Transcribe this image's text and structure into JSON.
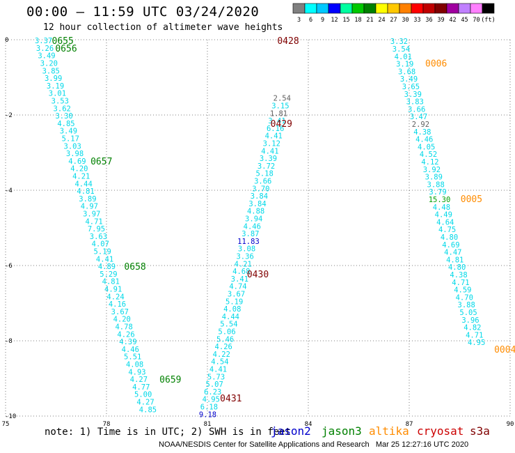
{
  "header": {
    "title": "00:00 – 11:59 UTC 03/24/2020",
    "subtitle": "12 hour collection of altimeter wave heights"
  },
  "colorbar": {
    "colors": [
      "#808080",
      "#00ffff",
      "#00c8ff",
      "#0000ff",
      "#00ffa0",
      "#00c800",
      "#008000",
      "#ffff00",
      "#ffc800",
      "#ff8000",
      "#ff0000",
      "#c00000",
      "#800000",
      "#a000a0",
      "#c080ff",
      "#ff80ff",
      "#000000"
    ],
    "labels": [
      "3",
      "6",
      "9",
      "12",
      "15",
      "18",
      "21",
      "24",
      "27",
      "30",
      "33",
      "36",
      "39",
      "42",
      "45",
      "70",
      "(ft)"
    ]
  },
  "note": "note: 1) Time is in UTC; 2) SWH is in feet",
  "legend": [
    {
      "label": "jason2",
      "color": "#0000cc"
    },
    {
      "label": "jason3",
      "color": "#008000"
    },
    {
      "label": "altika",
      "color": "#ff8c00"
    },
    {
      "label": "cryosat",
      "color": "#cc0000"
    },
    {
      "label": "s3a",
      "color": "#800000"
    }
  ],
  "footer": "NOAA/NESDIS Center for Satellite Applications and Research   Mar 25 12:27:16 UTC 2020",
  "chart_data": {
    "type": "scatter",
    "xlim": [
      75,
      90
    ],
    "ylim": [
      -10,
      0
    ],
    "xticks": [
      "75",
      "78",
      "81",
      "84",
      "87",
      "90"
    ],
    "yticks": [
      "0",
      "-2",
      "-4",
      "-6",
      "-8",
      "-10"
    ],
    "grid": true,
    "tracks": [
      {
        "color": "#00d8e8",
        "points": [
          {
            "x": 76.13,
            "y": -0.02,
            "v": "3.37"
          },
          {
            "x": 76.17,
            "y": -0.22,
            "v": "3.26"
          },
          {
            "x": 76.22,
            "y": -0.42,
            "v": "3.49"
          },
          {
            "x": 76.29,
            "y": -0.62,
            "v": "3.20"
          },
          {
            "x": 76.35,
            "y": -0.82,
            "v": "3.85"
          },
          {
            "x": 76.42,
            "y": -1.02,
            "v": "3.99"
          },
          {
            "x": 76.48,
            "y": -1.22,
            "v": "3.19"
          },
          {
            "x": 76.54,
            "y": -1.42,
            "v": "3.01"
          },
          {
            "x": 76.62,
            "y": -1.62,
            "v": "3.53"
          },
          {
            "x": 76.68,
            "y": -1.82,
            "v": "3.62"
          },
          {
            "x": 76.74,
            "y": -2.02,
            "v": "3.30"
          },
          {
            "x": 76.8,
            "y": -2.22,
            "v": "4.85"
          },
          {
            "x": 76.87,
            "y": -2.42,
            "v": "3.49"
          },
          {
            "x": 76.93,
            "y": -2.62,
            "v": "5.17"
          },
          {
            "x": 76.99,
            "y": -2.82,
            "v": "3.03"
          },
          {
            "x": 77.06,
            "y": -3.02,
            "v": "3.98"
          },
          {
            "x": 77.13,
            "y": -3.22,
            "v": "4.69"
          },
          {
            "x": 77.19,
            "y": -3.42,
            "v": "4.20"
          },
          {
            "x": 77.25,
            "y": -3.62,
            "v": "4.21"
          },
          {
            "x": 77.32,
            "y": -3.82,
            "v": "4.44"
          },
          {
            "x": 77.38,
            "y": -4.02,
            "v": "4.81"
          },
          {
            "x": 77.44,
            "y": -4.22,
            "v": "3.89"
          },
          {
            "x": 77.49,
            "y": -4.42,
            "v": "4.97"
          },
          {
            "x": 77.56,
            "y": -4.62,
            "v": "3.97"
          },
          {
            "x": 77.63,
            "y": -4.82,
            "v": "4.71"
          },
          {
            "x": 77.7,
            "y": -5.02,
            "v": "7.95"
          },
          {
            "x": 77.76,
            "y": -5.22,
            "v": "3.63"
          },
          {
            "x": 77.82,
            "y": -5.42,
            "v": "4.07"
          },
          {
            "x": 77.88,
            "y": -5.62,
            "v": "5.19"
          },
          {
            "x": 77.95,
            "y": -5.82,
            "v": "4.41"
          },
          {
            "x": 78.01,
            "y": -6.02,
            "v": "4.89"
          },
          {
            "x": 78.06,
            "y": -6.22,
            "v": "5.29"
          },
          {
            "x": 78.13,
            "y": -6.42,
            "v": "4.81"
          },
          {
            "x": 78.2,
            "y": -6.62,
            "v": "4.91"
          },
          {
            "x": 78.27,
            "y": -6.82,
            "v": "4.24"
          },
          {
            "x": 78.32,
            "y": -7.02,
            "v": "4.16"
          },
          {
            "x": 78.4,
            "y": -7.22,
            "v": "3.67"
          },
          {
            "x": 78.46,
            "y": -7.42,
            "v": "4.20"
          },
          {
            "x": 78.52,
            "y": -7.62,
            "v": "4.78"
          },
          {
            "x": 78.58,
            "y": -7.82,
            "v": "4.26"
          },
          {
            "x": 78.64,
            "y": -8.02,
            "v": "4.39"
          },
          {
            "x": 78.71,
            "y": -8.22,
            "v": "4.46"
          },
          {
            "x": 78.78,
            "y": -8.42,
            "v": "5.51"
          },
          {
            "x": 78.84,
            "y": -8.62,
            "v": "4.08"
          },
          {
            "x": 78.91,
            "y": -8.82,
            "v": "4.93"
          },
          {
            "x": 78.96,
            "y": -9.02,
            "v": "4.27"
          },
          {
            "x": 79.03,
            "y": -9.22,
            "v": "4.77"
          },
          {
            "x": 79.09,
            "y": -9.42,
            "v": "5.00"
          },
          {
            "x": 79.16,
            "y": -9.62,
            "v": "4.27"
          },
          {
            "x": 79.23,
            "y": -9.82,
            "v": "4.85"
          }
        ]
      },
      {
        "color": "#00d8e8",
        "points": [
          {
            "x": 81.01,
            "y": -9.95,
            "v": "9.18",
            "c": "#0000cc"
          },
          {
            "x": 81.05,
            "y": -9.75,
            "v": "6.18"
          },
          {
            "x": 81.11,
            "y": -9.55,
            "v": "4.95"
          },
          {
            "x": 81.16,
            "y": -9.35,
            "v": "6.23"
          },
          {
            "x": 81.21,
            "y": -9.15,
            "v": "5.07"
          },
          {
            "x": 81.26,
            "y": -8.95,
            "v": "5.73"
          },
          {
            "x": 81.32,
            "y": -8.75,
            "v": "4.41"
          },
          {
            "x": 81.37,
            "y": -8.55,
            "v": "4.54"
          },
          {
            "x": 81.42,
            "y": -8.35,
            "v": "4.22"
          },
          {
            "x": 81.48,
            "y": -8.15,
            "v": "4.26"
          },
          {
            "x": 81.53,
            "y": -7.95,
            "v": "5.46"
          },
          {
            "x": 81.58,
            "y": -7.75,
            "v": "5.06"
          },
          {
            "x": 81.64,
            "y": -7.55,
            "v": "5.54"
          },
          {
            "x": 81.69,
            "y": -7.35,
            "v": "4.44"
          },
          {
            "x": 81.74,
            "y": -7.15,
            "v": "4.08"
          },
          {
            "x": 81.8,
            "y": -6.95,
            "v": "5.19"
          },
          {
            "x": 81.86,
            "y": -6.75,
            "v": "3.67"
          },
          {
            "x": 81.91,
            "y": -6.55,
            "v": "4.74"
          },
          {
            "x": 81.96,
            "y": -6.35,
            "v": "3.41"
          },
          {
            "x": 82.01,
            "y": -6.15,
            "v": "4.68"
          },
          {
            "x": 82.06,
            "y": -5.95,
            "v": "4.21"
          },
          {
            "x": 82.12,
            "y": -5.75,
            "v": "3.36"
          },
          {
            "x": 82.17,
            "y": -5.55,
            "v": "3.08"
          },
          {
            "x": 82.22,
            "y": -5.35,
            "v": "11.83",
            "c": "#0000cc"
          },
          {
            "x": 82.28,
            "y": -5.15,
            "v": "3.87"
          },
          {
            "x": 82.33,
            "y": -4.95,
            "v": "4.46"
          },
          {
            "x": 82.38,
            "y": -4.75,
            "v": "3.94"
          },
          {
            "x": 82.44,
            "y": -4.55,
            "v": "4.88"
          },
          {
            "x": 82.49,
            "y": -4.35,
            "v": "3.84"
          },
          {
            "x": 82.54,
            "y": -4.15,
            "v": "3.84"
          },
          {
            "x": 82.59,
            "y": -3.95,
            "v": "3.70"
          },
          {
            "x": 82.65,
            "y": -3.75,
            "v": "3.66"
          },
          {
            "x": 82.7,
            "y": -3.55,
            "v": "5.18"
          },
          {
            "x": 82.75,
            "y": -3.35,
            "v": "3.72"
          },
          {
            "x": 82.81,
            "y": -3.15,
            "v": "3.39"
          },
          {
            "x": 82.86,
            "y": -2.95,
            "v": "4.41"
          },
          {
            "x": 82.91,
            "y": -2.75,
            "v": "3.12"
          },
          {
            "x": 82.97,
            "y": -2.55,
            "v": "4.41"
          },
          {
            "x": 83.02,
            "y": -2.35,
            "v": "6.16"
          },
          {
            "x": 83.07,
            "y": -2.15,
            "v": "3.41"
          },
          {
            "x": 83.12,
            "y": -1.95,
            "v": "1.81",
            "c": "#606060"
          },
          {
            "x": 83.17,
            "y": -1.75,
            "v": "3.15"
          },
          {
            "x": 83.22,
            "y": -1.55,
            "v": "2.54",
            "c": "#606060"
          }
        ]
      },
      {
        "color": "#00d8e8",
        "points": [
          {
            "x": 86.7,
            "y": -0.04,
            "v": "3.32"
          },
          {
            "x": 86.76,
            "y": -0.24,
            "v": "3.54"
          },
          {
            "x": 86.82,
            "y": -0.44,
            "v": "4.01"
          },
          {
            "x": 86.87,
            "y": -0.64,
            "v": "3.19"
          },
          {
            "x": 86.93,
            "y": -0.84,
            "v": "3.68"
          },
          {
            "x": 86.99,
            "y": -1.04,
            "v": "3.49"
          },
          {
            "x": 87.05,
            "y": -1.24,
            "v": "3.65"
          },
          {
            "x": 87.11,
            "y": -1.44,
            "v": "3.39"
          },
          {
            "x": 87.17,
            "y": -1.64,
            "v": "3.83"
          },
          {
            "x": 87.22,
            "y": -1.84,
            "v": "3.66"
          },
          {
            "x": 87.28,
            "y": -2.04,
            "v": "3.47"
          },
          {
            "x": 87.34,
            "y": -2.24,
            "v": "2.92",
            "c": "#606060"
          },
          {
            "x": 87.39,
            "y": -2.44,
            "v": "4.38"
          },
          {
            "x": 87.45,
            "y": -2.64,
            "v": "4.46"
          },
          {
            "x": 87.51,
            "y": -2.84,
            "v": "4.05"
          },
          {
            "x": 87.57,
            "y": -3.04,
            "v": "4.52"
          },
          {
            "x": 87.62,
            "y": -3.24,
            "v": "4.12"
          },
          {
            "x": 87.67,
            "y": -3.44,
            "v": "3.92"
          },
          {
            "x": 87.73,
            "y": -3.64,
            "v": "3.89"
          },
          {
            "x": 87.79,
            "y": -3.84,
            "v": "3.88"
          },
          {
            "x": 87.85,
            "y": -4.04,
            "v": "3.79"
          },
          {
            "x": 87.9,
            "y": -4.24,
            "v": "15.30",
            "c": "#00a000"
          },
          {
            "x": 87.96,
            "y": -4.44,
            "v": "4.48"
          },
          {
            "x": 88.02,
            "y": -4.64,
            "v": "4.49"
          },
          {
            "x": 88.07,
            "y": -4.84,
            "v": "4.64"
          },
          {
            "x": 88.13,
            "y": -5.04,
            "v": "4.75"
          },
          {
            "x": 88.19,
            "y": -5.24,
            "v": "4.80"
          },
          {
            "x": 88.24,
            "y": -5.44,
            "v": "4.69"
          },
          {
            "x": 88.3,
            "y": -5.64,
            "v": "4.47"
          },
          {
            "x": 88.36,
            "y": -5.84,
            "v": "4.81"
          },
          {
            "x": 88.42,
            "y": -6.04,
            "v": "4.80"
          },
          {
            "x": 88.47,
            "y": -6.24,
            "v": "4.38"
          },
          {
            "x": 88.53,
            "y": -6.44,
            "v": "4.71"
          },
          {
            "x": 88.59,
            "y": -6.64,
            "v": "4.59"
          },
          {
            "x": 88.64,
            "y": -6.84,
            "v": "4.70"
          },
          {
            "x": 88.7,
            "y": -7.04,
            "v": "3.88"
          },
          {
            "x": 88.76,
            "y": -7.24,
            "v": "5.05"
          },
          {
            "x": 88.82,
            "y": -7.44,
            "v": "3.96"
          },
          {
            "x": 88.88,
            "y": -7.64,
            "v": "4.82"
          },
          {
            "x": 88.94,
            "y": -7.84,
            "v": "4.71"
          },
          {
            "x": 89.0,
            "y": -8.04,
            "v": "4.95"
          }
        ]
      }
    ],
    "time_labels": [
      {
        "x": 76.7,
        "y": -0.02,
        "text": "0655",
        "color": "#008000"
      },
      {
        "x": 76.8,
        "y": -0.22,
        "text": "0656",
        "color": "#008000"
      },
      {
        "x": 77.85,
        "y": -3.22,
        "text": "0657",
        "color": "#008000"
      },
      {
        "x": 78.85,
        "y": -6.02,
        "text": "0658",
        "color": "#008000"
      },
      {
        "x": 79.9,
        "y": -9.02,
        "text": "0659",
        "color": "#008000"
      },
      {
        "x": 83.4,
        "y": -0.02,
        "text": "0428",
        "color": "#800000"
      },
      {
        "x": 83.2,
        "y": -2.22,
        "text": "0429",
        "color": "#800000"
      },
      {
        "x": 82.5,
        "y": -6.22,
        "text": "0430",
        "color": "#800000"
      },
      {
        "x": 81.7,
        "y": -9.52,
        "text": "0431",
        "color": "#800000"
      },
      {
        "x": 87.8,
        "y": -0.62,
        "text": "0006",
        "color": "#ff8c00"
      },
      {
        "x": 88.85,
        "y": -4.22,
        "text": "0005",
        "color": "#ff8c00"
      },
      {
        "x": 89.85,
        "y": -8.22,
        "text": "0004",
        "color": "#ff8c00"
      }
    ]
  }
}
